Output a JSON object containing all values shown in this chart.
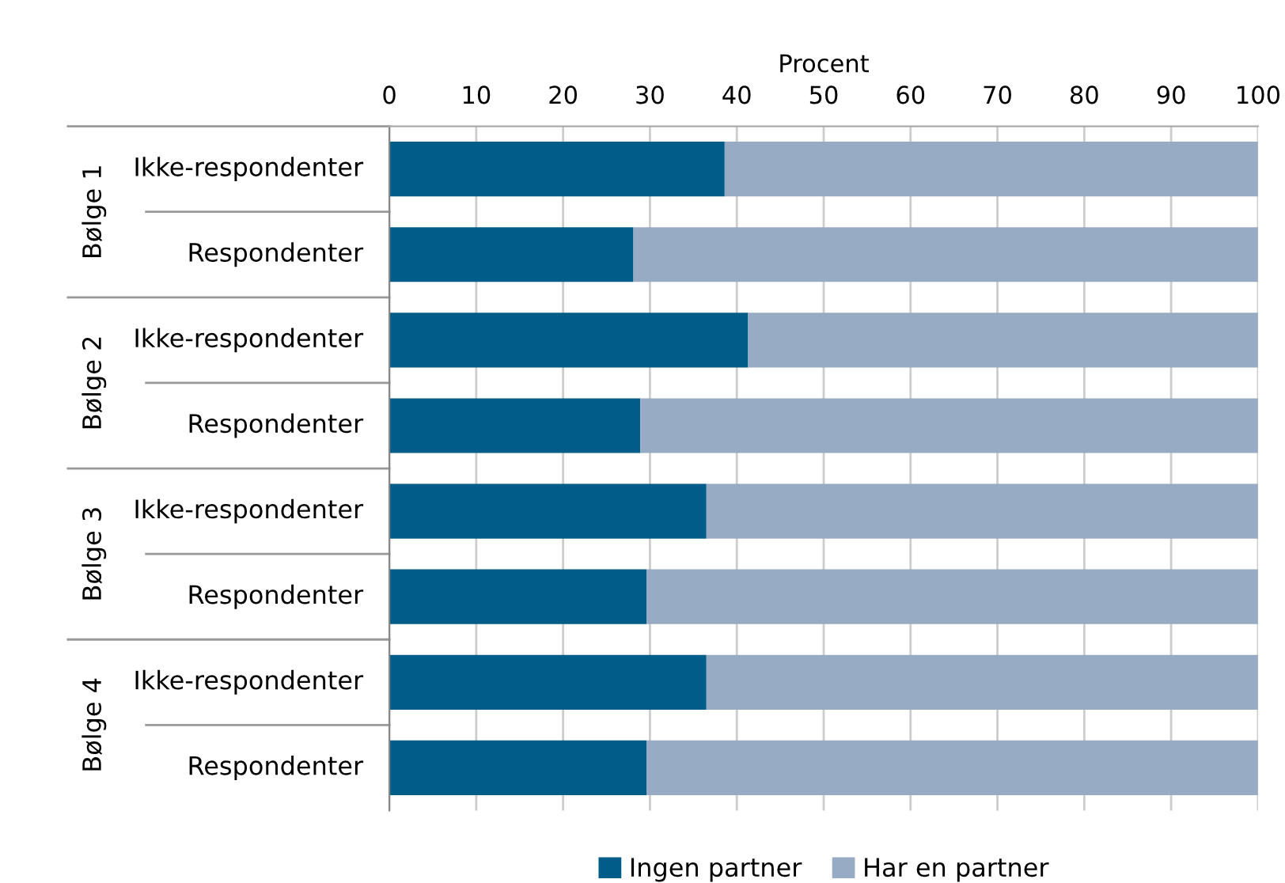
{
  "chart_data": {
    "type": "bar",
    "orientation": "horizontal",
    "stacked": true,
    "xlabel": "Procent",
    "categories": [
      "Ikke-respondenter",
      "Respondenter",
      "Ikke-respondenter",
      "Respondenter",
      "Ikke-respondenter",
      "Respondenter",
      "Ikke-respondenter",
      "Respondenter"
    ],
    "annotations": [
      "Bølge 1",
      "Bølge 2",
      "Bølge 3",
      "Bølge 4"
    ],
    "series": [
      {
        "name": "Ingen partner",
        "color": "#005d8a",
        "values": [
          38.6,
          28.1,
          41.3,
          28.9,
          36.5,
          29.6,
          36.5,
          29.6
        ]
      },
      {
        "name": "Har en partner",
        "color": "#97abc4",
        "values": [
          61.4,
          71.9,
          58.7,
          71.1,
          63.5,
          70.4,
          63.5,
          70.4
        ]
      }
    ],
    "xlim": [
      0,
      100
    ],
    "xticks": [
      0,
      10,
      20,
      30,
      40,
      50,
      60,
      70,
      80,
      90,
      100
    ],
    "grid": "x",
    "legend": "bottom"
  }
}
